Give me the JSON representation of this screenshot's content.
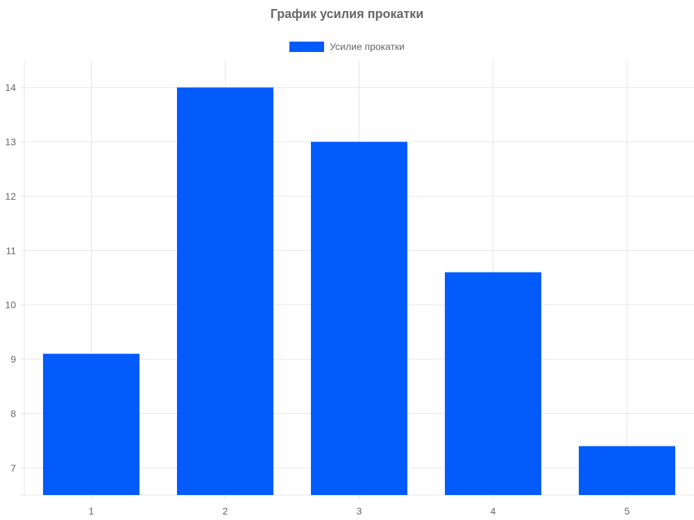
{
  "chart_data": {
    "type": "bar",
    "title": "График усилия прокатки",
    "categories": [
      "1",
      "2",
      "3",
      "4",
      "5"
    ],
    "series": [
      {
        "name": "Усилие прокатки",
        "values": [
          9.1,
          14.0,
          13.0,
          10.6,
          7.4
        ]
      }
    ],
    "y_ticks": [
      "7",
      "8",
      "9",
      "10",
      "11",
      "12",
      "13",
      "14"
    ],
    "ylim": [
      6.5,
      14.5
    ],
    "grid": true,
    "legend_position": "top",
    "colors": {
      "bar": "#035bfc",
      "grid": "#e5e5e5",
      "text": "#666666"
    }
  }
}
